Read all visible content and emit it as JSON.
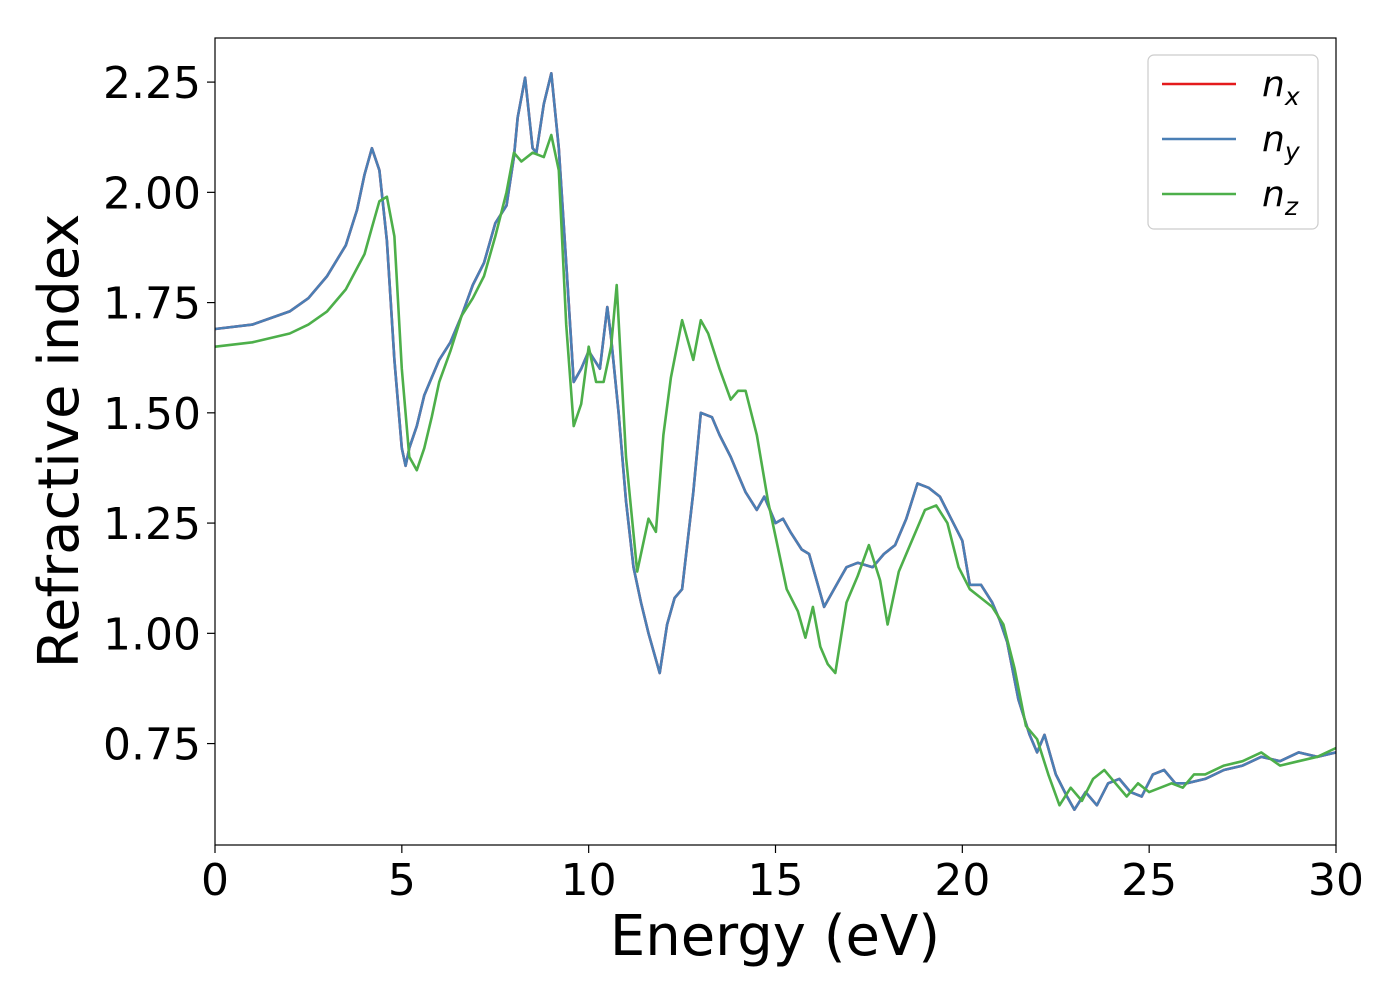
{
  "chart_data": {
    "type": "line",
    "xlabel": "Energy (eV)",
    "ylabel": "Refractive index",
    "xlim": [
      0,
      30
    ],
    "ylim": [
      0.52,
      2.35
    ],
    "xticks": [
      "0",
      "5",
      "10",
      "15",
      "20",
      "25",
      "30"
    ],
    "yticks": [
      "0.75",
      "1.00",
      "1.25",
      "1.50",
      "1.75",
      "2.00",
      "2.25"
    ],
    "grid": false,
    "legend_position": "top-right",
    "series": [
      {
        "name": "n_x",
        "legend_base": "n",
        "legend_sub": "x",
        "color": "#e41a1c",
        "x": [
          0,
          1,
          2,
          2.5,
          3,
          3.5,
          3.8,
          4.0,
          4.2,
          4.4,
          4.6,
          4.8,
          5.0,
          5.1,
          5.2,
          5.4,
          5.6,
          5.8,
          6.0,
          6.3,
          6.6,
          6.9,
          7.2,
          7.5,
          7.8,
          8.0,
          8.1,
          8.3,
          8.5,
          8.6,
          8.8,
          9.0,
          9.2,
          9.4,
          9.6,
          9.8,
          10.0,
          10.3,
          10.5,
          10.6,
          10.8,
          11.0,
          11.2,
          11.4,
          11.6,
          11.9,
          12.1,
          12.3,
          12.5,
          12.8,
          13.0,
          13.3,
          13.5,
          13.8,
          14.0,
          14.2,
          14.5,
          14.7,
          15.0,
          15.2,
          15.4,
          15.7,
          15.9,
          16.1,
          16.3,
          16.7,
          16.9,
          17.2,
          17.6,
          17.9,
          18.2,
          18.5,
          18.8,
          19.1,
          19.4,
          19.7,
          20.0,
          20.2,
          20.5,
          20.8,
          21.0,
          21.2,
          21.5,
          21.8,
          22.0,
          22.2,
          22.5,
          22.8,
          23.0,
          23.3,
          23.6,
          23.9,
          24.2,
          24.5,
          24.8,
          25.1,
          25.4,
          25.7,
          26.0,
          26.5,
          27.0,
          27.5,
          28.0,
          28.5,
          29.0,
          29.5,
          30.0
        ],
        "y": [
          1.69,
          1.7,
          1.73,
          1.76,
          1.81,
          1.88,
          1.96,
          2.04,
          2.1,
          2.05,
          1.89,
          1.62,
          1.42,
          1.38,
          1.42,
          1.47,
          1.54,
          1.58,
          1.62,
          1.66,
          1.72,
          1.79,
          1.84,
          1.93,
          1.97,
          2.08,
          2.17,
          2.26,
          2.1,
          2.09,
          2.2,
          2.27,
          2.1,
          1.84,
          1.57,
          1.6,
          1.64,
          1.6,
          1.74,
          1.67,
          1.5,
          1.3,
          1.15,
          1.07,
          1.0,
          0.91,
          1.02,
          1.08,
          1.1,
          1.32,
          1.5,
          1.49,
          1.45,
          1.4,
          1.36,
          1.32,
          1.28,
          1.31,
          1.25,
          1.26,
          1.23,
          1.19,
          1.18,
          1.12,
          1.06,
          1.12,
          1.15,
          1.16,
          1.15,
          1.18,
          1.2,
          1.26,
          1.34,
          1.33,
          1.31,
          1.26,
          1.21,
          1.11,
          1.11,
          1.07,
          1.03,
          0.98,
          0.85,
          0.77,
          0.73,
          0.77,
          0.68,
          0.63,
          0.6,
          0.64,
          0.61,
          0.66,
          0.67,
          0.64,
          0.63,
          0.68,
          0.69,
          0.66,
          0.66,
          0.67,
          0.69,
          0.7,
          0.72,
          0.71,
          0.73,
          0.72,
          0.73
        ]
      },
      {
        "name": "n_y",
        "legend_base": "n",
        "legend_sub": "y",
        "color": "#4a7fb5",
        "x": [
          0,
          1,
          2,
          2.5,
          3,
          3.5,
          3.8,
          4.0,
          4.2,
          4.4,
          4.6,
          4.8,
          5.0,
          5.1,
          5.2,
          5.4,
          5.6,
          5.8,
          6.0,
          6.3,
          6.6,
          6.9,
          7.2,
          7.5,
          7.8,
          8.0,
          8.1,
          8.3,
          8.5,
          8.6,
          8.8,
          9.0,
          9.2,
          9.4,
          9.6,
          9.8,
          10.0,
          10.3,
          10.5,
          10.6,
          10.8,
          11.0,
          11.2,
          11.4,
          11.6,
          11.9,
          12.1,
          12.3,
          12.5,
          12.8,
          13.0,
          13.3,
          13.5,
          13.8,
          14.0,
          14.2,
          14.5,
          14.7,
          15.0,
          15.2,
          15.4,
          15.7,
          15.9,
          16.1,
          16.3,
          16.7,
          16.9,
          17.2,
          17.6,
          17.9,
          18.2,
          18.5,
          18.8,
          19.1,
          19.4,
          19.7,
          20.0,
          20.2,
          20.5,
          20.8,
          21.0,
          21.2,
          21.5,
          21.8,
          22.0,
          22.2,
          22.5,
          22.8,
          23.0,
          23.3,
          23.6,
          23.9,
          24.2,
          24.5,
          24.8,
          25.1,
          25.4,
          25.7,
          26.0,
          26.5,
          27.0,
          27.5,
          28.0,
          28.5,
          29.0,
          29.5,
          30.0
        ],
        "y": [
          1.69,
          1.7,
          1.73,
          1.76,
          1.81,
          1.88,
          1.96,
          2.04,
          2.1,
          2.05,
          1.89,
          1.62,
          1.42,
          1.38,
          1.42,
          1.47,
          1.54,
          1.58,
          1.62,
          1.66,
          1.72,
          1.79,
          1.84,
          1.93,
          1.97,
          2.08,
          2.17,
          2.26,
          2.1,
          2.09,
          2.2,
          2.27,
          2.1,
          1.84,
          1.57,
          1.6,
          1.64,
          1.6,
          1.74,
          1.67,
          1.5,
          1.3,
          1.15,
          1.07,
          1.0,
          0.91,
          1.02,
          1.08,
          1.1,
          1.32,
          1.5,
          1.49,
          1.45,
          1.4,
          1.36,
          1.32,
          1.28,
          1.31,
          1.25,
          1.26,
          1.23,
          1.19,
          1.18,
          1.12,
          1.06,
          1.12,
          1.15,
          1.16,
          1.15,
          1.18,
          1.2,
          1.26,
          1.34,
          1.33,
          1.31,
          1.26,
          1.21,
          1.11,
          1.11,
          1.07,
          1.03,
          0.98,
          0.85,
          0.77,
          0.73,
          0.77,
          0.68,
          0.63,
          0.6,
          0.64,
          0.61,
          0.66,
          0.67,
          0.64,
          0.63,
          0.68,
          0.69,
          0.66,
          0.66,
          0.67,
          0.69,
          0.7,
          0.72,
          0.71,
          0.73,
          0.72,
          0.73
        ]
      },
      {
        "name": "n_z",
        "legend_base": "n",
        "legend_sub": "z",
        "color": "#4daf4a",
        "x": [
          0,
          1,
          2,
          2.5,
          3,
          3.5,
          4.0,
          4.2,
          4.4,
          4.6,
          4.8,
          5.0,
          5.2,
          5.4,
          5.6,
          5.8,
          6.0,
          6.3,
          6.6,
          6.9,
          7.2,
          7.5,
          7.8,
          8.0,
          8.2,
          8.5,
          8.8,
          9.0,
          9.2,
          9.4,
          9.6,
          9.8,
          10.0,
          10.2,
          10.4,
          10.6,
          10.75,
          11.0,
          11.3,
          11.6,
          11.8,
          12.0,
          12.2,
          12.5,
          12.8,
          13.0,
          13.2,
          13.5,
          13.8,
          14.0,
          14.2,
          14.5,
          14.8,
          15.0,
          15.3,
          15.6,
          15.8,
          16.0,
          16.2,
          16.4,
          16.6,
          16.9,
          17.2,
          17.5,
          17.8,
          18.0,
          18.3,
          18.6,
          19.0,
          19.3,
          19.6,
          19.9,
          20.2,
          20.5,
          20.8,
          21.1,
          21.4,
          21.7,
          22.0,
          22.3,
          22.6,
          22.9,
          23.2,
          23.5,
          23.8,
          24.1,
          24.4,
          24.7,
          25.0,
          25.3,
          25.6,
          25.9,
          26.2,
          26.5,
          27.0,
          27.5,
          28.0,
          28.5,
          29.0,
          29.5,
          30.0
        ],
        "y": [
          1.65,
          1.66,
          1.68,
          1.7,
          1.73,
          1.78,
          1.86,
          1.92,
          1.98,
          1.99,
          1.9,
          1.6,
          1.4,
          1.37,
          1.42,
          1.49,
          1.57,
          1.64,
          1.72,
          1.76,
          1.81,
          1.9,
          2.0,
          2.09,
          2.07,
          2.09,
          2.08,
          2.13,
          2.05,
          1.7,
          1.47,
          1.52,
          1.65,
          1.57,
          1.57,
          1.65,
          1.79,
          1.4,
          1.14,
          1.26,
          1.23,
          1.45,
          1.58,
          1.71,
          1.62,
          1.71,
          1.68,
          1.6,
          1.53,
          1.55,
          1.55,
          1.45,
          1.3,
          1.22,
          1.1,
          1.05,
          0.99,
          1.06,
          0.97,
          0.93,
          0.91,
          1.07,
          1.13,
          1.2,
          1.12,
          1.02,
          1.14,
          1.2,
          1.28,
          1.29,
          1.25,
          1.15,
          1.1,
          1.08,
          1.06,
          1.02,
          0.92,
          0.79,
          0.76,
          0.68,
          0.61,
          0.65,
          0.62,
          0.67,
          0.69,
          0.66,
          0.63,
          0.66,
          0.64,
          0.65,
          0.66,
          0.65,
          0.68,
          0.68,
          0.7,
          0.71,
          0.73,
          0.7,
          0.71,
          0.72,
          0.74
        ]
      }
    ]
  }
}
